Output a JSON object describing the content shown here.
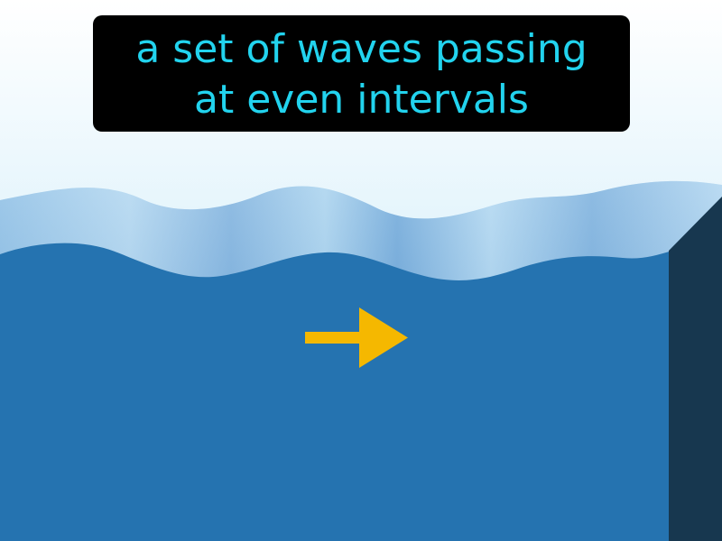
{
  "caption": {
    "line1": "a set of waves passing",
    "line2": "at even intervals"
  },
  "icons": {
    "arrow": "right-arrow-icon"
  },
  "colors": {
    "sky_top": "#ffffff",
    "sky_bottom": "#bfe6f8",
    "wave_light": "#9fcdec",
    "wave_mid": "#5d9fd6",
    "water": "#2573b0",
    "cliff": "#17374f",
    "arrow": "#f5b800",
    "caption_bg": "#000000",
    "caption_text": "#22d3ee"
  }
}
